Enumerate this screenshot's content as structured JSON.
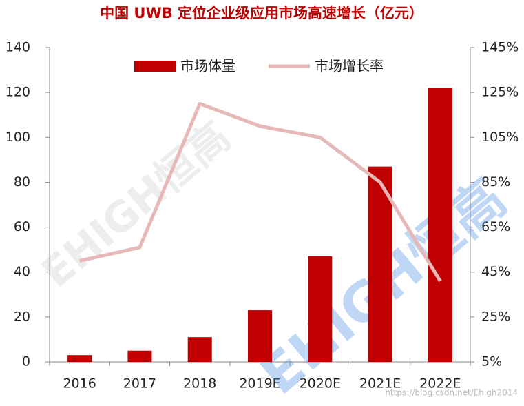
{
  "chart_data": {
    "type": "bar",
    "title": "中国 UWB 定位企业级应用市场高速增长（亿元）",
    "categories": [
      "2016",
      "2017",
      "2018",
      "2019E",
      "2020E",
      "2021E",
      "2022E"
    ],
    "series": [
      {
        "name": "市场体量",
        "type": "bar",
        "color": "#c00000",
        "values": [
          3,
          5,
          11,
          23,
          47,
          87,
          122
        ]
      },
      {
        "name": "市场增长率",
        "type": "line",
        "axis": "y2",
        "color": "#e6b8b7",
        "values": [
          50,
          56,
          120,
          110,
          105,
          85,
          41
        ]
      }
    ],
    "ylim": [
      0,
      140
    ],
    "yticks": [
      0,
      20,
      40,
      60,
      80,
      100,
      120,
      140
    ],
    "y2lim": [
      5,
      145
    ],
    "y2ticks": [
      {
        "value": 5,
        "label": "5%"
      },
      {
        "value": 25,
        "label": "25%"
      },
      {
        "value": 45,
        "label": "45%"
      },
      {
        "value": 65,
        "label": "65%"
      },
      {
        "value": 85,
        "label": "85%"
      },
      {
        "value": 105,
        "label": "105%"
      },
      {
        "value": 125,
        "label": "125%"
      },
      {
        "value": 145,
        "label": "145%"
      }
    ],
    "legend": "top",
    "watermark": "EHIGH恒高",
    "source": "https://blog.csdn.net/Ehigh2014"
  }
}
